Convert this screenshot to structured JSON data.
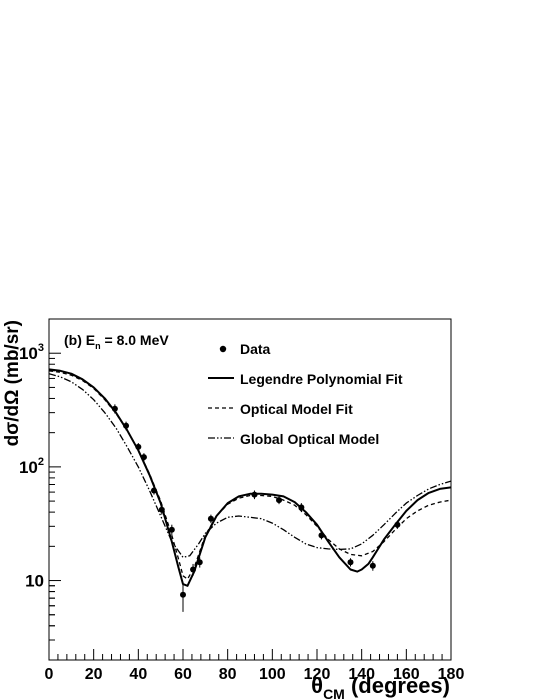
{
  "chart_data": {
    "type": "scatter",
    "annotation": {
      "prefix": "(b) E",
      "subscript": "n",
      "suffix": " = 8.0 MeV"
    },
    "xlabel": {
      "symbol": "θ",
      "subscript": "CM",
      "rest": " (degrees)"
    },
    "ylabel": "dσ/dΩ (mb/sr)",
    "xlim": [
      0,
      180
    ],
    "ylim": [
      2,
      2000
    ],
    "yscale": "log",
    "x_ticks": [
      0,
      20,
      40,
      60,
      80,
      100,
      120,
      140,
      160,
      180
    ],
    "x_tick_labels": [
      "0",
      "20",
      "40",
      "60",
      "80",
      "100",
      "120",
      "140",
      "160",
      "180"
    ],
    "y_major_ticks": [
      10,
      100,
      1000
    ],
    "y_tick_labels": [
      {
        "value": 10,
        "base": "10",
        "exp": ""
      },
      {
        "value": 100,
        "base": "10",
        "exp": "2"
      },
      {
        "value": 1000,
        "base": "10",
        "exp": "3"
      }
    ],
    "grid": false,
    "legend_position": "top-right",
    "series": [
      {
        "name": "Data",
        "style": "points",
        "color": "#000000",
        "points": [
          {
            "x": 29.5,
            "y": 325,
            "err": 30
          },
          {
            "x": 34.5,
            "y": 230,
            "err": 20
          },
          {
            "x": 40.0,
            "y": 150,
            "err": 12
          },
          {
            "x": 42.5,
            "y": 122,
            "err": 10
          },
          {
            "x": 47.0,
            "y": 62,
            "err": 5
          },
          {
            "x": 50.5,
            "y": 42,
            "err": 4
          },
          {
            "x": 55.0,
            "y": 28,
            "err": 3
          },
          {
            "x": 60.0,
            "y": 7.5,
            "err": 2.2
          },
          {
            "x": 64.5,
            "y": 12.5,
            "err": 1.5
          },
          {
            "x": 67.5,
            "y": 14.5,
            "err": 1.5
          },
          {
            "x": 72.5,
            "y": 35,
            "err": 3
          },
          {
            "x": 92.0,
            "y": 57,
            "err": 5
          },
          {
            "x": 103.0,
            "y": 51,
            "err": 4
          },
          {
            "x": 113.0,
            "y": 44,
            "err": 4
          },
          {
            "x": 122.0,
            "y": 25,
            "err": 2
          },
          {
            "x": 135.0,
            "y": 14.5,
            "err": 1.2
          },
          {
            "x": 145.0,
            "y": 13.5,
            "err": 1.3
          },
          {
            "x": 156.0,
            "y": 31,
            "err": 2.5
          }
        ]
      },
      {
        "name": "Legendre Polynomial Fit",
        "style": "solid",
        "color": "#000000",
        "x": [
          0,
          5,
          10,
          15,
          20,
          25,
          30,
          35,
          40,
          45,
          50,
          55,
          58,
          60,
          62,
          65,
          70,
          75,
          80,
          85,
          90,
          95,
          100,
          105,
          110,
          115,
          120,
          125,
          130,
          135,
          138,
          140,
          143,
          145,
          150,
          155,
          160,
          165,
          170,
          175,
          180
        ],
        "y": [
          720,
          700,
          660,
          590,
          500,
          400,
          300,
          210,
          140,
          85,
          48,
          22,
          13,
          9.3,
          9.0,
          12,
          24,
          37,
          48,
          55,
          58,
          58,
          57,
          55,
          49,
          40,
          31,
          22,
          16,
          12.5,
          12,
          12.5,
          14,
          16,
          23,
          31,
          41,
          51,
          59,
          64,
          66
        ]
      },
      {
        "name": "Optical Model Fit",
        "style": "dashed",
        "color": "#000000",
        "x": [
          0,
          5,
          10,
          15,
          20,
          25,
          30,
          35,
          40,
          45,
          50,
          55,
          58,
          60,
          62,
          65,
          70,
          75,
          80,
          85,
          90,
          95,
          100,
          105,
          110,
          115,
          120,
          125,
          130,
          135,
          140,
          145,
          150,
          155,
          160,
          165,
          170,
          175,
          180
        ],
        "y": [
          700,
          680,
          640,
          575,
          490,
          390,
          295,
          210,
          140,
          87,
          50,
          25,
          15.5,
          11,
          10.3,
          13,
          25,
          37,
          47,
          53,
          56,
          56,
          55,
          51,
          46,
          38,
          30,
          23,
          19,
          17,
          16.5,
          18,
          22,
          28,
          35,
          41,
          46,
          49,
          51
        ]
      },
      {
        "name": "Global Optical Model",
        "style": "dashdot",
        "color": "#000000",
        "x": [
          0,
          5,
          10,
          15,
          20,
          25,
          30,
          35,
          40,
          45,
          50,
          55,
          60,
          63,
          67,
          70,
          75,
          80,
          85,
          90,
          95,
          100,
          105,
          110,
          115,
          120,
          125,
          130,
          135,
          140,
          145,
          150,
          155,
          160,
          165,
          170,
          175,
          180
        ],
        "y": [
          660,
          620,
          560,
          480,
          390,
          300,
          220,
          150,
          100,
          62,
          37,
          22,
          16,
          16.5,
          21,
          26,
          32,
          36,
          37,
          36,
          35,
          32,
          28,
          24,
          21,
          19.5,
          19,
          18.8,
          19,
          21,
          25,
          31,
          39,
          48,
          56,
          64,
          70,
          75
        ]
      }
    ]
  }
}
